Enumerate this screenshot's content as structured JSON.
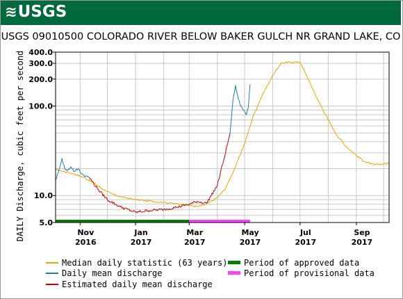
{
  "header": {
    "logo_text": "USGS",
    "logo_icon": "usgs-waves-icon",
    "brand_color": "#006a3d"
  },
  "title": "USGS 09010500 COLORADO RIVER BELOW BAKER GULCH NR GRAND LAKE, CO",
  "legend": {
    "median_label": "Median daily statistic (63 years)",
    "daily_label": "Daily mean discharge",
    "estimated_label": "Estimated daily mean discharge",
    "approved_label": "Period of approved data",
    "provisional_label": "Period of provisional data"
  },
  "chart_data": {
    "type": "line",
    "title": "USGS 09010500 COLORADO RIVER BELOW BAKER GULCH NR GRAND LAKE, CO",
    "ylabel": "DAILY Discharge, cubic feet per second",
    "xlabel": "",
    "y_scale": "log",
    "ylim": [
      5.0,
      400.0
    ],
    "xlim": [
      "2016-10-05",
      "2017-10-07"
    ],
    "y_ticks": [
      5.0,
      10.0,
      100.0,
      200.0,
      300.0,
      400.0
    ],
    "y_tick_labels": [
      "5.0",
      "10.0",
      "100.0",
      "200.0",
      "300.0",
      "400.0"
    ],
    "x_ticks": [
      {
        "date": "2016-11-01",
        "label": "Nov",
        "sub": "2016"
      },
      {
        "date": "2017-01-01",
        "label": "Jan",
        "sub": "2017"
      },
      {
        "date": "2017-03-01",
        "label": "Mar",
        "sub": "2017"
      },
      {
        "date": "2017-05-01",
        "label": "May",
        "sub": "2017"
      },
      {
        "date": "2017-07-01",
        "label": "Jul",
        "sub": "2017"
      },
      {
        "date": "2017-09-01",
        "label": "Sep",
        "sub": "2017"
      }
    ],
    "grid": true,
    "legend_position": "bottom",
    "series": [
      {
        "name": "Median daily statistic (63 years)",
        "color": "#f0a400",
        "x": [
          "2016-10-05",
          "2016-10-15",
          "2016-10-25",
          "2016-11-05",
          "2016-11-15",
          "2016-11-25",
          "2016-12-05",
          "2016-12-15",
          "2017-01-01",
          "2017-01-15",
          "2017-02-01",
          "2017-02-15",
          "2017-03-01",
          "2017-03-10",
          "2017-03-20",
          "2017-04-01",
          "2017-04-10",
          "2017-04-20",
          "2017-05-01",
          "2017-05-10",
          "2017-05-20",
          "2017-06-01",
          "2017-06-10",
          "2017-06-20",
          "2017-07-01",
          "2017-07-10",
          "2017-07-20",
          "2017-08-01",
          "2017-08-10",
          "2017-08-20",
          "2017-09-01",
          "2017-09-10",
          "2017-09-20",
          "2017-10-07"
        ],
        "values": [
          19.5,
          18.5,
          17.5,
          16,
          14,
          12,
          10.5,
          9.7,
          9.0,
          8.7,
          8.4,
          8.1,
          7.8,
          7.5,
          8.0,
          9.5,
          12,
          20,
          38,
          75,
          130,
          220,
          300,
          310,
          310,
          200,
          120,
          70,
          48,
          36,
          28,
          24,
          22,
          23
        ]
      },
      {
        "name": "Daily mean discharge",
        "color": "#1e7bb8",
        "x": [
          "2016-10-05",
          "2016-10-08",
          "2016-10-12",
          "2016-10-15",
          "2016-10-18",
          "2016-10-22",
          "2016-10-26",
          "2016-10-30",
          "2016-11-03",
          "2016-11-07",
          "2016-11-11",
          "2017-04-15",
          "2017-04-18",
          "2017-04-21",
          "2017-04-24",
          "2017-04-27",
          "2017-04-30",
          "2017-05-03",
          "2017-05-05",
          "2017-05-07"
        ],
        "values": [
          15,
          18,
          26,
          20,
          19,
          21,
          18.5,
          20,
          17.5,
          16.5,
          16,
          50,
          110,
          170,
          120,
          100,
          90,
          80,
          95,
          175
        ]
      },
      {
        "name": "Estimated daily mean discharge",
        "color": "#cc0000",
        "x": [
          "2016-11-11",
          "2016-11-20",
          "2016-12-01",
          "2016-12-15",
          "2017-01-01",
          "2017-01-15",
          "2017-02-01",
          "2017-02-15",
          "2017-03-01",
          "2017-03-10",
          "2017-03-20",
          "2017-04-01",
          "2017-04-08",
          "2017-04-15"
        ],
        "values": [
          16,
          12,
          9.0,
          7.5,
          6.5,
          6.8,
          7.0,
          7.4,
          8.0,
          8.6,
          8.2,
          13,
          25,
          50
        ]
      }
    ],
    "periods": [
      {
        "name": "Period of approved data",
        "color": "#008000",
        "start": "2016-10-05",
        "end": "2017-03-01"
      },
      {
        "name": "Period of provisional data",
        "color": "#ff40ff",
        "start": "2017-03-01",
        "end": "2017-05-07"
      }
    ]
  }
}
